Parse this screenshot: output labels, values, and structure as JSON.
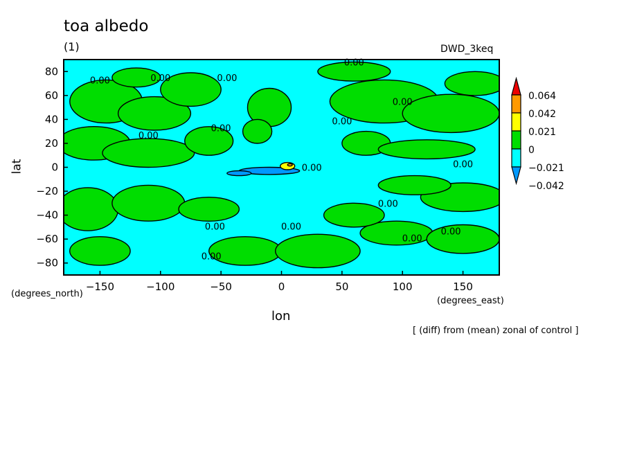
{
  "figure": {
    "title": "toa albedo",
    "subtitle": "(1)",
    "model": "DWD_3keq",
    "footnote": "[ (diff) from (mean) zonal of control ]"
  },
  "colors": {
    "green": "#00dd00",
    "cyan": "#00ffff",
    "yellow": "#ffff00",
    "orange": "#ff9900",
    "red": "#ee0000",
    "blue": "#0099ff"
  },
  "chart_data": {
    "type": "heatmap",
    "title": "toa albedo",
    "subtitle": "(1)",
    "xlabel": "lon",
    "ylabel": "lat",
    "x_units": "(degrees_east)",
    "y_units": "(degrees_north)",
    "xlim": [
      -180,
      180
    ],
    "ylim": [
      -90,
      90
    ],
    "x_ticks": [
      -150,
      -100,
      -50,
      0,
      50,
      100,
      150
    ],
    "y_ticks": [
      80,
      60,
      40,
      20,
      0,
      -20,
      -40,
      -60,
      -80
    ],
    "colorbar": {
      "levels": [
        "0.064",
        "0.042",
        "0.021",
        "0",
        "−0.021",
        "−0.042"
      ],
      "colors": [
        "#0099ff",
        "#00ffff",
        "#00dd00",
        "#ffff00",
        "#ff9900",
        "#ee0000"
      ]
    },
    "contour_labels": [
      {
        "text": "0.00",
        "lon": -150,
        "lat": 70
      },
      {
        "text": "0.00",
        "lon": -100,
        "lat": 72
      },
      {
        "text": "0.00",
        "lon": -45,
        "lat": 72
      },
      {
        "text": "0.00",
        "lon": 60,
        "lat": 85
      },
      {
        "text": "0.00",
        "lon": 100,
        "lat": 52
      },
      {
        "text": "0.00",
        "lon": -110,
        "lat": 24
      },
      {
        "text": "0.00",
        "lon": -50,
        "lat": 30
      },
      {
        "text": "0.00",
        "lon": 50,
        "lat": 36
      },
      {
        "text": "0.00",
        "lon": 25,
        "lat": -3
      },
      {
        "text": "0.00",
        "lon": 150,
        "lat": 0
      },
      {
        "text": "0.00",
        "lon": 88,
        "lat": -33
      },
      {
        "text": "0.00",
        "lon": -55,
        "lat": -52
      },
      {
        "text": "0.00",
        "lon": 8,
        "lat": -52
      },
      {
        "text": "0.00",
        "lon": 108,
        "lat": -62
      },
      {
        "text": "0.00",
        "lon": 140,
        "lat": -56
      },
      {
        "text": "0.00",
        "lon": -58,
        "lat": -77
      }
    ]
  }
}
